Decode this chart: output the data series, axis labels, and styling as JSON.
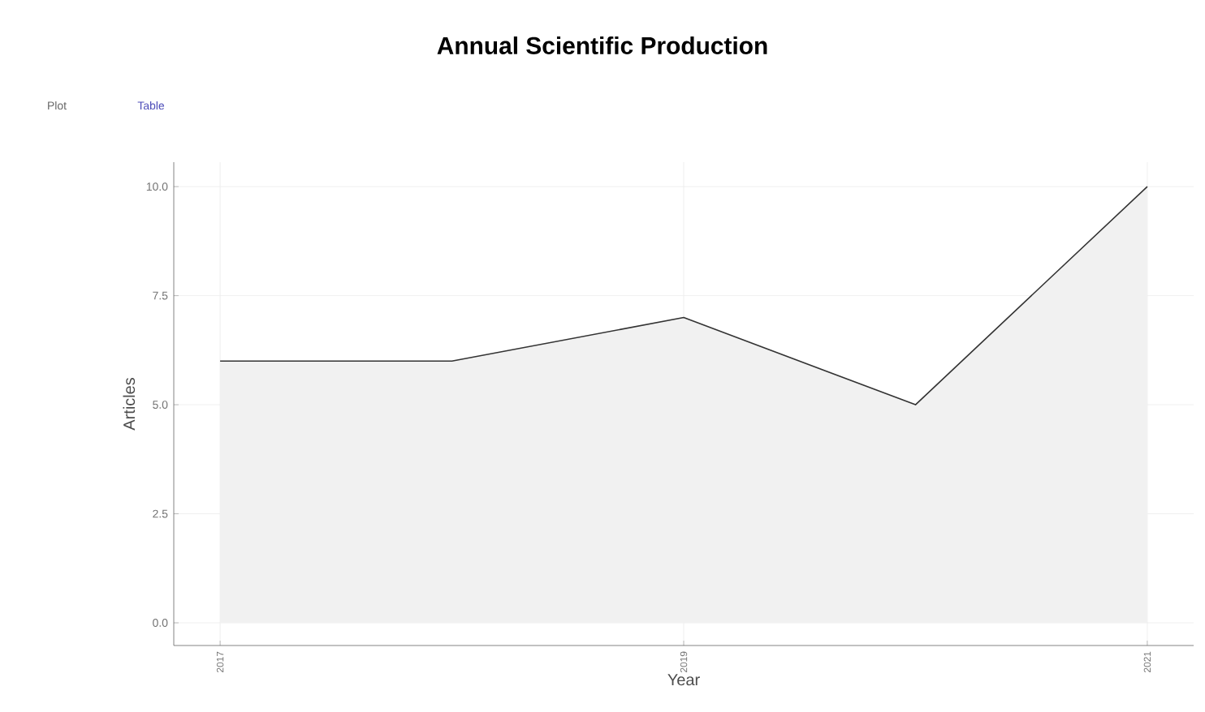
{
  "chart_data": {
    "type": "area",
    "title": "Annual Scientific Production",
    "xlabel": "Year",
    "ylabel": "Articles",
    "annotations": [
      "Plot",
      "Table"
    ],
    "x": [
      2017,
      2018,
      2019,
      2020,
      2021
    ],
    "values": [
      6,
      6,
      7,
      5,
      10
    ],
    "color": "#333333",
    "xlim": [
      2016.8,
      2021.2
    ],
    "ylim": [
      -0.52,
      10.56
    ],
    "xticks": [
      2017,
      2019,
      2021
    ],
    "yticks": [
      {
        "value": 0,
        "label": "0.0"
      },
      {
        "value": 2.5,
        "label": "2.5"
      },
      {
        "value": 5,
        "label": "5.0"
      },
      {
        "value": 7.5,
        "label": "7.5"
      },
      {
        "value": 10,
        "label": "10.0"
      }
    ],
    "grid": true
  }
}
